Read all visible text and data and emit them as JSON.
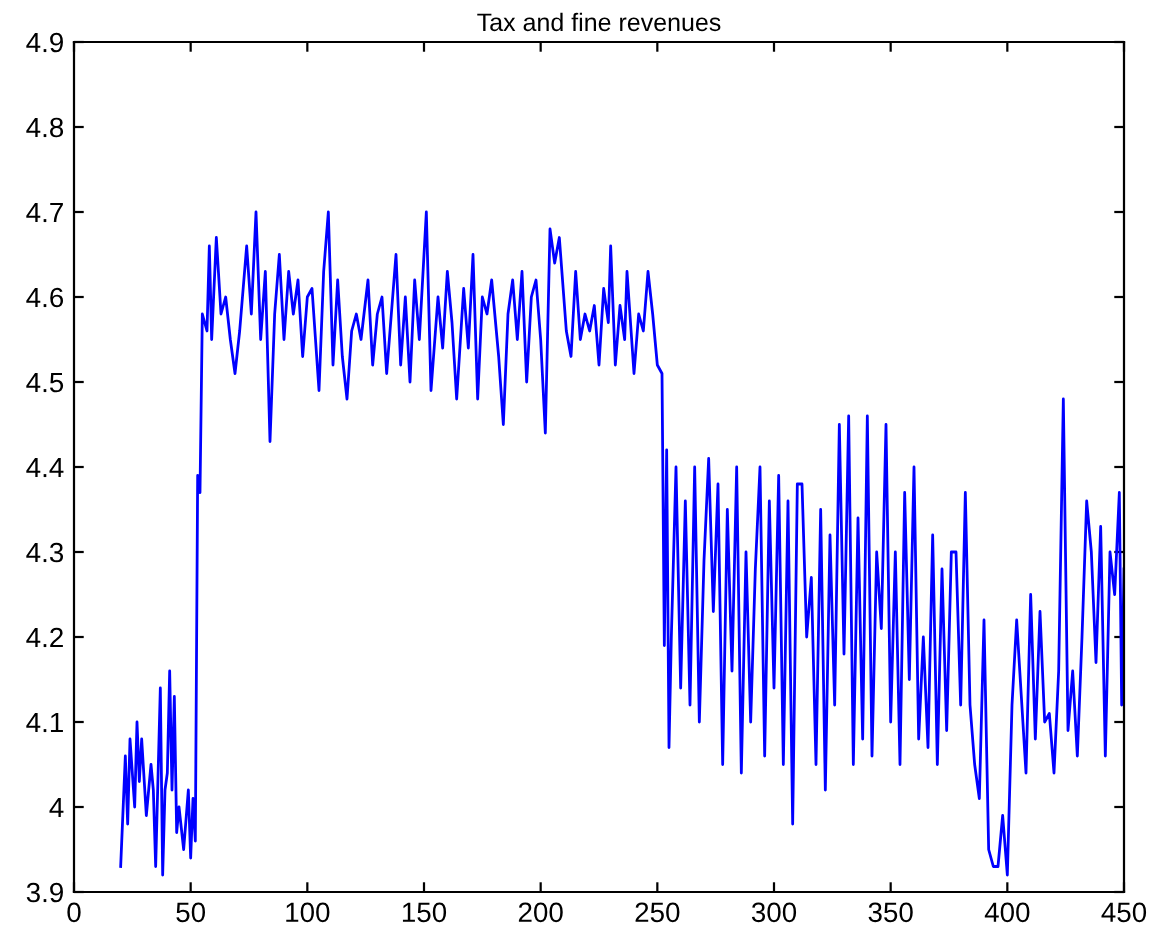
{
  "chart_data": {
    "type": "line",
    "title": "Tax and fine revenues",
    "x": [
      20,
      22,
      23,
      24,
      26,
      27,
      28,
      29,
      31,
      33,
      34,
      35,
      37,
      38,
      39,
      40,
      41,
      42,
      43,
      44,
      45,
      47,
      49,
      50,
      51,
      52,
      53,
      54,
      55,
      57,
      58,
      59,
      61,
      63,
      65,
      67,
      69,
      71,
      74,
      76,
      78,
      80,
      82,
      84,
      86,
      88,
      90,
      92,
      94,
      96,
      98,
      100,
      102,
      105,
      107,
      109,
      111,
      113,
      115,
      117,
      119,
      121,
      123,
      126,
      128,
      130,
      132,
      134,
      136,
      138,
      140,
      142,
      144,
      146,
      148,
      151,
      153,
      156,
      158,
      160,
      162,
      164,
      167,
      169,
      171,
      173,
      175,
      177,
      179,
      182,
      184,
      186,
      188,
      190,
      192,
      194,
      196,
      198,
      200,
      202,
      204,
      206,
      208,
      211,
      213,
      215,
      217,
      219,
      221,
      223,
      225,
      227,
      229,
      230,
      232,
      234,
      236,
      237,
      240,
      242,
      244,
      246,
      248,
      250,
      252,
      253,
      254,
      255,
      256,
      258,
      260,
      262,
      264,
      266,
      268,
      270,
      272,
      274,
      276,
      278,
      280,
      282,
      284,
      286,
      288,
      290,
      292,
      294,
      296,
      298,
      300,
      302,
      304,
      306,
      308,
      310,
      312,
      314,
      316,
      318,
      320,
      322,
      324,
      326,
      328,
      330,
      332,
      334,
      336,
      338,
      340,
      342,
      344,
      346,
      348,
      350,
      352,
      354,
      356,
      358,
      360,
      362,
      364,
      366,
      368,
      370,
      372,
      374,
      376,
      378,
      380,
      382,
      384,
      386,
      388,
      390,
      392,
      394,
      396,
      398,
      400,
      402,
      404,
      406,
      408,
      410,
      412,
      414,
      416,
      418,
      420,
      422,
      424,
      426,
      428,
      430,
      432,
      434,
      436,
      438,
      440,
      442,
      444,
      446,
      448,
      449,
      450
    ],
    "series": [
      {
        "color": "#0000ff",
        "values": [
          3.93,
          4.06,
          3.98,
          4.08,
          4.0,
          4.1,
          4.03,
          4.08,
          3.99,
          4.05,
          4.02,
          3.93,
          4.14,
          3.92,
          4.02,
          4.04,
          4.16,
          4.02,
          4.13,
          3.97,
          4.0,
          3.95,
          4.02,
          3.94,
          4.01,
          3.96,
          4.39,
          4.37,
          4.58,
          4.56,
          4.66,
          4.55,
          4.67,
          4.58,
          4.6,
          4.55,
          4.51,
          4.56,
          4.66,
          4.58,
          4.7,
          4.55,
          4.63,
          4.43,
          4.58,
          4.65,
          4.55,
          4.63,
          4.58,
          4.62,
          4.53,
          4.6,
          4.61,
          4.49,
          4.63,
          4.7,
          4.52,
          4.62,
          4.53,
          4.48,
          4.56,
          4.58,
          4.55,
          4.62,
          4.52,
          4.58,
          4.6,
          4.51,
          4.58,
          4.65,
          4.52,
          4.6,
          4.5,
          4.62,
          4.55,
          4.7,
          4.49,
          4.6,
          4.54,
          4.63,
          4.57,
          4.48,
          4.61,
          4.54,
          4.65,
          4.48,
          4.6,
          4.58,
          4.62,
          4.53,
          4.45,
          4.58,
          4.62,
          4.55,
          4.63,
          4.5,
          4.6,
          4.62,
          4.55,
          4.44,
          4.68,
          4.64,
          4.67,
          4.56,
          4.53,
          4.63,
          4.55,
          4.58,
          4.56,
          4.59,
          4.52,
          4.61,
          4.57,
          4.66,
          4.52,
          4.59,
          4.55,
          4.63,
          4.51,
          4.58,
          4.56,
          4.63,
          4.58,
          4.52,
          4.51,
          4.19,
          4.42,
          4.07,
          4.2,
          4.4,
          4.14,
          4.36,
          4.12,
          4.4,
          4.1,
          4.29,
          4.41,
          4.23,
          4.38,
          4.05,
          4.35,
          4.16,
          4.4,
          4.04,
          4.3,
          4.1,
          4.28,
          4.4,
          4.06,
          4.36,
          4.14,
          4.39,
          4.05,
          4.36,
          3.98,
          4.38,
          4.38,
          4.2,
          4.27,
          4.05,
          4.35,
          4.02,
          4.32,
          4.12,
          4.45,
          4.18,
          4.46,
          4.05,
          4.34,
          4.08,
          4.46,
          4.06,
          4.3,
          4.21,
          4.45,
          4.1,
          4.3,
          4.05,
          4.37,
          4.15,
          4.4,
          4.08,
          4.2,
          4.07,
          4.32,
          4.05,
          4.28,
          4.09,
          4.3,
          4.3,
          4.12,
          4.37,
          4.12,
          4.05,
          4.01,
          4.22,
          3.95,
          3.93,
          3.93,
          3.99,
          3.92,
          4.12,
          4.22,
          4.13,
          4.04,
          4.25,
          4.08,
          4.23,
          4.1,
          4.11,
          4.04,
          4.16,
          4.48,
          4.09,
          4.16,
          4.06,
          4.2,
          4.36,
          4.3,
          4.17,
          4.33,
          4.06,
          4.3,
          4.25,
          4.37,
          4.12,
          4.28
        ]
      }
    ],
    "xlim": [
      0,
      450
    ],
    "xticks": [
      0,
      50,
      100,
      150,
      200,
      250,
      300,
      350,
      400,
      450
    ],
    "ylim": [
      3.9,
      4.9
    ],
    "yticks": [
      3.9,
      4,
      4.1,
      4.2,
      4.3,
      4.4,
      4.5,
      4.6,
      4.7,
      4.8,
      4.9
    ],
    "grid": false,
    "legend": false
  }
}
